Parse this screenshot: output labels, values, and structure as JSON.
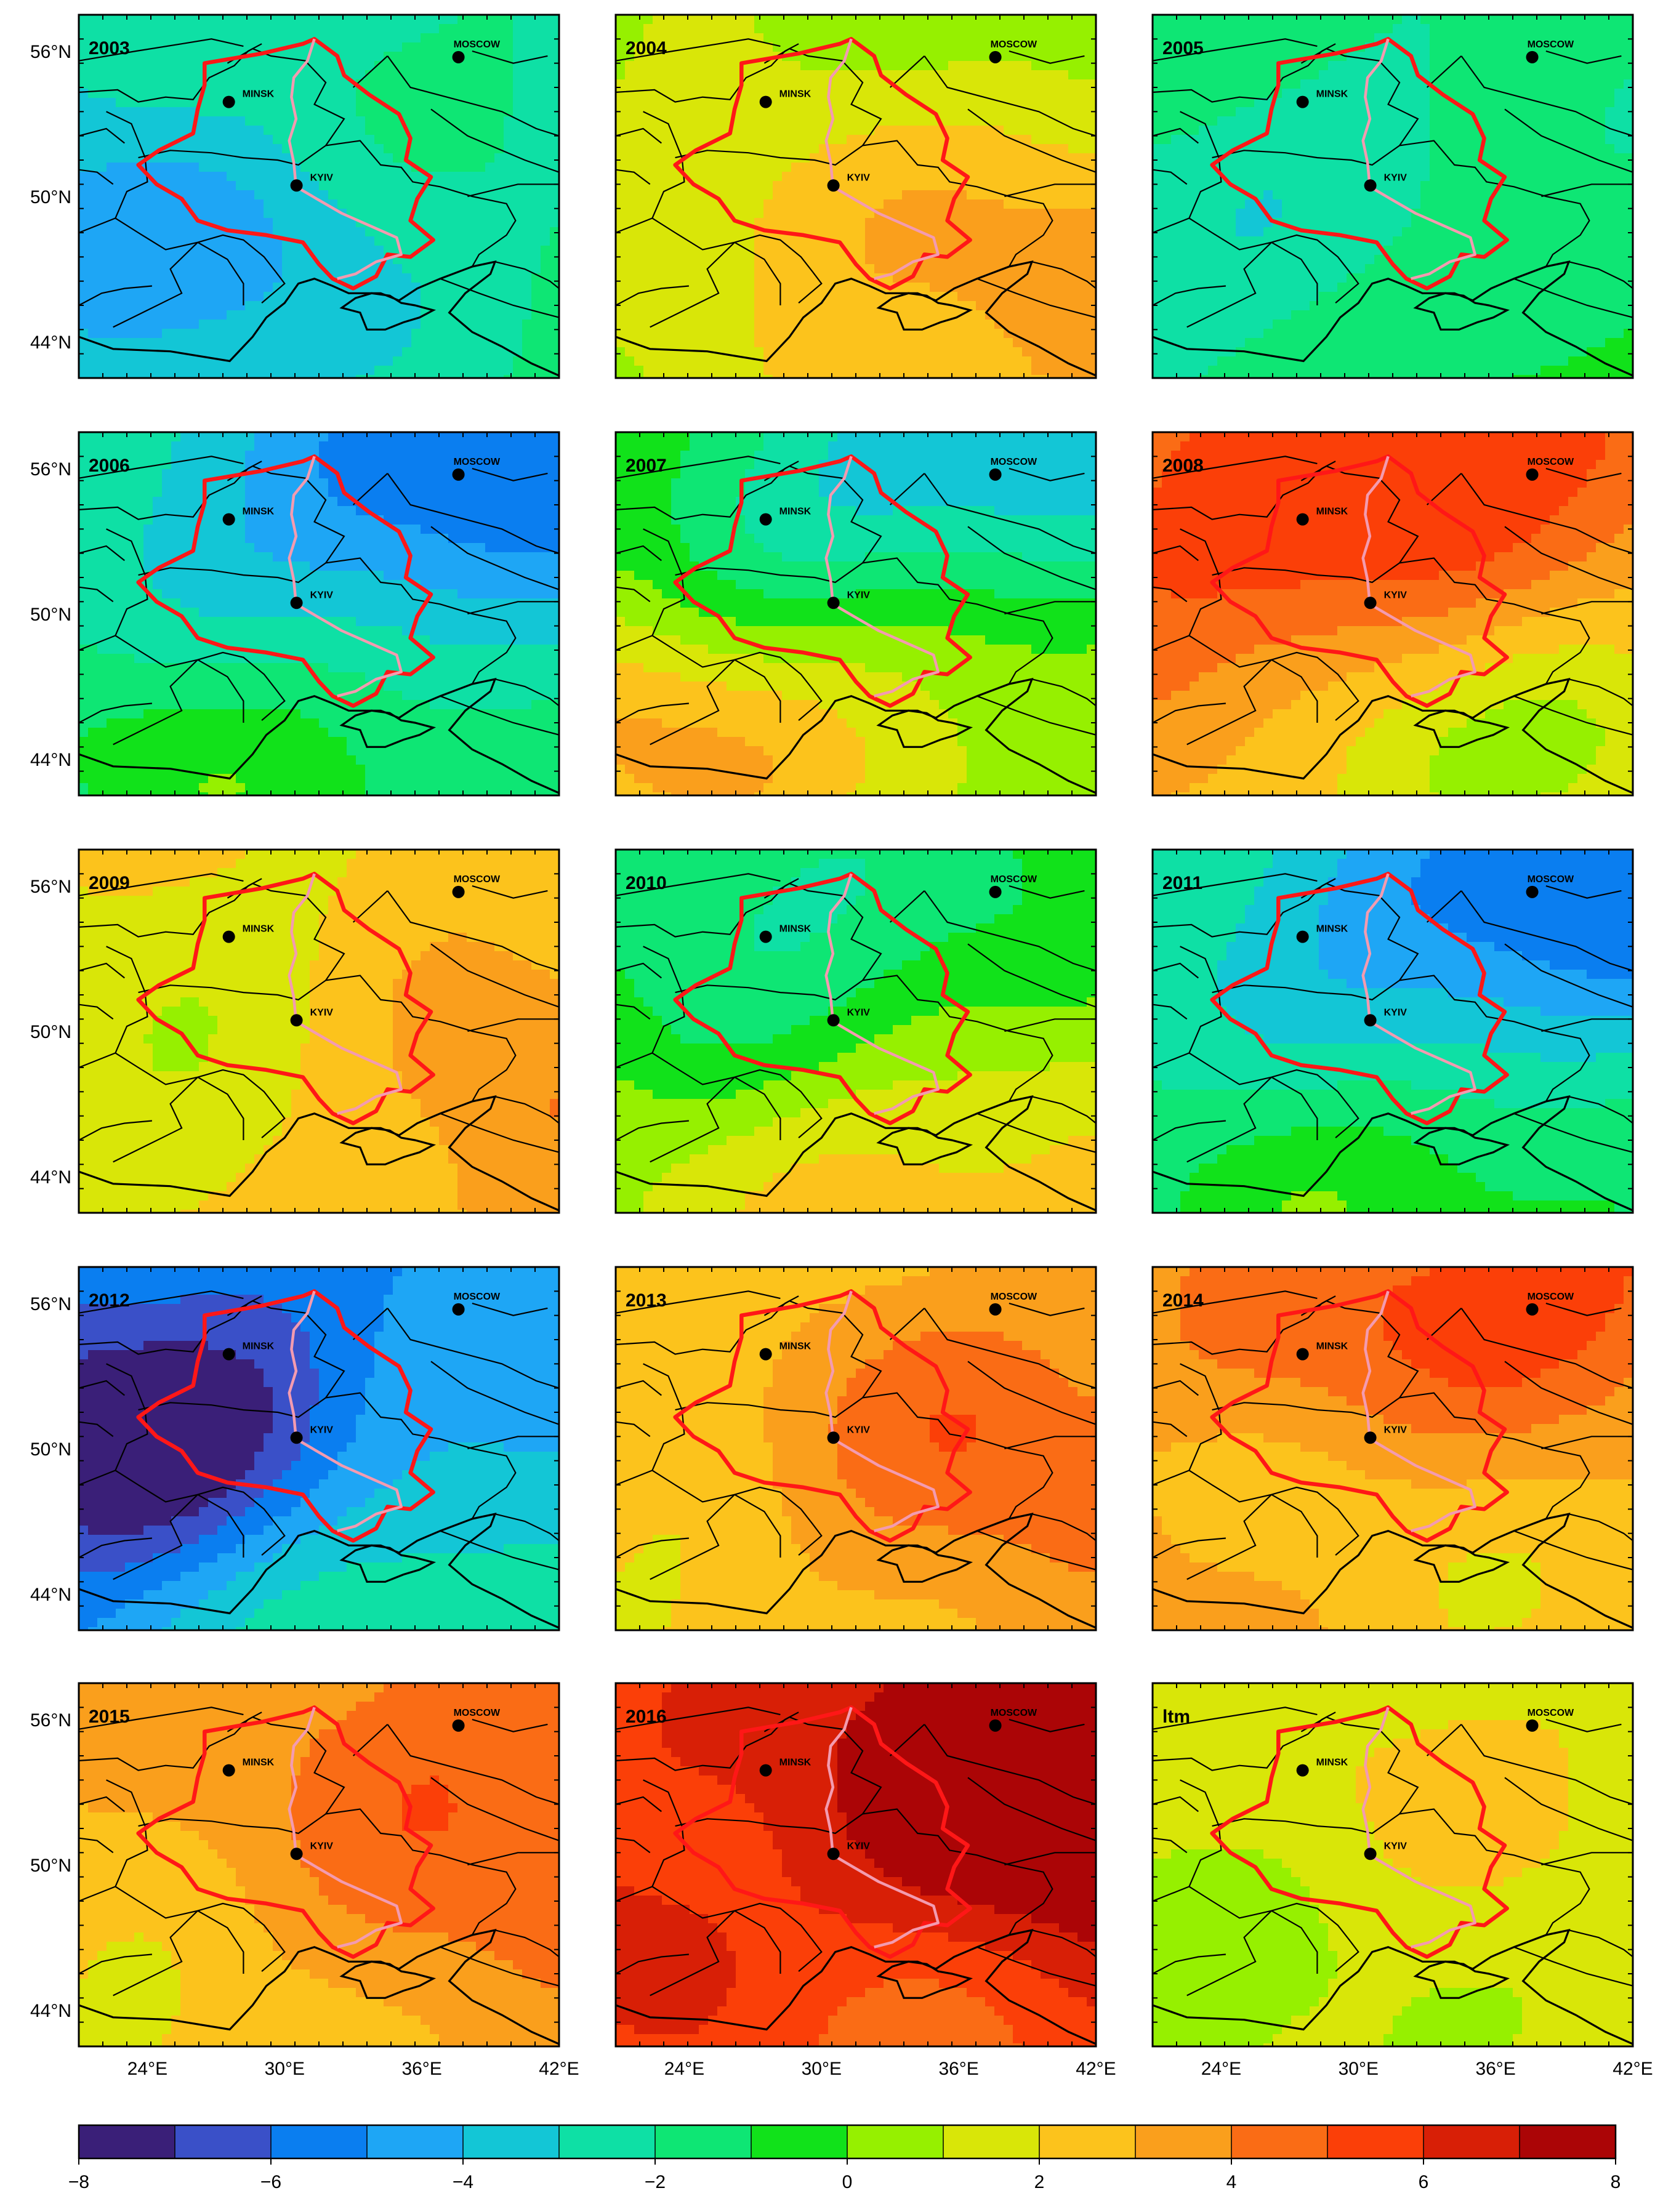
{
  "panels": [
    {
      "label": "2003",
      "field": {
        "base": -2.6,
        "blobs": [
          [
            0.05,
            0.62,
            -1.6,
            0.35
          ],
          [
            0.45,
            0.7,
            -0.8,
            0.25
          ],
          [
            0.85,
            0.2,
            0.6,
            0.35
          ],
          [
            0.95,
            0.95,
            0.8,
            0.3
          ],
          [
            0.4,
            0.15,
            0.5,
            0.25
          ]
        ]
      }
    },
    {
      "label": "2004",
      "field": {
        "base": 1.2,
        "blobs": [
          [
            0.3,
            0.55,
            1.2,
            0.3
          ],
          [
            0.95,
            0.75,
            2.4,
            0.35
          ],
          [
            0.75,
            0.1,
            -0.9,
            0.3
          ],
          [
            0.05,
            0.15,
            -0.8,
            0.25
          ],
          [
            0.1,
            0.9,
            -0.6,
            0.25
          ]
        ]
      }
    },
    {
      "label": "2005",
      "field": {
        "base": -1.3,
        "blobs": [
          [
            0.1,
            0.75,
            -1.2,
            0.35
          ],
          [
            0.45,
            0.4,
            -0.8,
            0.25
          ],
          [
            0.65,
            0.95,
            0.9,
            0.3
          ],
          [
            0.95,
            0.4,
            -0.5,
            0.3
          ]
        ]
      }
    },
    {
      "label": "2006",
      "field": {
        "base": -2.8,
        "blobs": [
          [
            0.9,
            0.1,
            -2.4,
            0.3
          ],
          [
            0.55,
            0.25,
            -1.2,
            0.3
          ],
          [
            0.3,
            0.95,
            1.8,
            0.3
          ],
          [
            0.85,
            0.95,
            1.4,
            0.3
          ],
          [
            0.05,
            0.85,
            0.8,
            0.25
          ]
        ]
      }
    },
    {
      "label": "2007",
      "field": {
        "base": -0.4,
        "blobs": [
          [
            0.85,
            0.05,
            -3.2,
            0.3
          ],
          [
            0.35,
            0.25,
            -1.8,
            0.25
          ],
          [
            0.05,
            0.85,
            3.4,
            0.3
          ],
          [
            0.6,
            0.9,
            1.4,
            0.3
          ],
          [
            0.95,
            0.7,
            0.6,
            0.3
          ]
        ]
      }
    },
    {
      "label": "2008",
      "field": {
        "base": 3.3,
        "blobs": [
          [
            0.35,
            0.2,
            2.2,
            0.3
          ],
          [
            0.85,
            0.05,
            1.6,
            0.3
          ],
          [
            0.45,
            0.95,
            -1.6,
            0.3
          ],
          [
            0.95,
            0.8,
            -1.9,
            0.3
          ],
          [
            0.05,
            0.6,
            1.2,
            0.25
          ]
        ]
      }
    },
    {
      "label": "2009",
      "field": {
        "base": 2.6,
        "blobs": [
          [
            0.15,
            0.3,
            -1.2,
            0.3
          ],
          [
            0.95,
            0.7,
            1.4,
            0.3
          ],
          [
            0.5,
            0.55,
            -0.4,
            0.25
          ],
          [
            0.2,
            0.95,
            -0.9,
            0.25
          ]
        ]
      }
    },
    {
      "label": "2010",
      "field": {
        "base": 0.6,
        "blobs": [
          [
            0.1,
            0.05,
            -1.8,
            0.3
          ],
          [
            0.7,
            0.15,
            -1.8,
            0.35
          ],
          [
            0.3,
            0.45,
            -0.9,
            0.25
          ],
          [
            0.5,
            0.95,
            1.5,
            0.3
          ],
          [
            0.95,
            0.85,
            1.3,
            0.3
          ]
        ]
      }
    },
    {
      "label": "2011",
      "field": {
        "base": -2.4,
        "blobs": [
          [
            0.95,
            0.1,
            -3.0,
            0.3
          ],
          [
            0.5,
            0.3,
            -1.6,
            0.3
          ],
          [
            0.3,
            0.95,
            1.9,
            0.3
          ],
          [
            0.85,
            0.95,
            1.4,
            0.3
          ]
        ]
      }
    },
    {
      "label": "2012",
      "field": {
        "base": -4.9,
        "blobs": [
          [
            0.2,
            0.45,
            -2.8,
            0.3
          ],
          [
            0.05,
            0.55,
            -1.2,
            0.25
          ],
          [
            0.5,
            0.95,
            2.3,
            0.3
          ],
          [
            0.95,
            0.95,
            1.6,
            0.3
          ],
          [
            0.9,
            0.15,
            0.6,
            0.3
          ]
        ]
      }
    },
    {
      "label": "2013",
      "field": {
        "base": 2.8,
        "blobs": [
          [
            0.55,
            0.45,
            1.2,
            0.3
          ],
          [
            0.95,
            0.6,
            1.4,
            0.3
          ],
          [
            0.05,
            0.15,
            -1.1,
            0.25
          ],
          [
            0.15,
            0.95,
            -1.0,
            0.3
          ]
        ]
      }
    },
    {
      "label": "2014",
      "field": {
        "base": 2.6,
        "blobs": [
          [
            0.85,
            0.05,
            2.6,
            0.3
          ],
          [
            0.35,
            0.15,
            1.6,
            0.3
          ],
          [
            0.5,
            0.75,
            -0.6,
            0.3
          ],
          [
            0.05,
            0.95,
            0.8,
            0.25
          ]
        ]
      }
    },
    {
      "label": "2015",
      "field": {
        "base": 2.8,
        "blobs": [
          [
            0.8,
            0.1,
            1.6,
            0.35
          ],
          [
            0.9,
            0.7,
            1.2,
            0.3
          ],
          [
            0.2,
            0.95,
            -1.2,
            0.3
          ],
          [
            0.4,
            0.55,
            0.5,
            0.25
          ]
        ]
      }
    },
    {
      "label": "2016",
      "field": {
        "base": 5.3,
        "blobs": [
          [
            0.95,
            0.4,
            2.8,
            0.35
          ],
          [
            0.7,
            0.05,
            1.4,
            0.3
          ],
          [
            0.15,
            0.7,
            1.0,
            0.2
          ],
          [
            0.55,
            0.95,
            -1.2,
            0.3
          ],
          [
            0.05,
            0.95,
            0.6,
            0.25
          ]
        ]
      }
    },
    {
      "label": "ltm",
      "field": {
        "base": 1.0,
        "blobs": [
          [
            0.45,
            0.3,
            0.8,
            0.3
          ],
          [
            0.8,
            0.2,
            0.6,
            0.3
          ],
          [
            0.2,
            0.85,
            -0.5,
            0.3
          ],
          [
            0.95,
            0.85,
            0.5,
            0.3
          ]
        ]
      }
    }
  ],
  "cities": {
    "moscow": "MOSCOW",
    "minsk": "MINSK",
    "kyiv": "KYIV"
  },
  "lat_ticks": [
    "56°N",
    "50°N",
    "44°N"
  ],
  "lon_ticks": [
    "24°E",
    "30°E",
    "36°E",
    "42°E"
  ],
  "colorbar": {
    "levels": [
      -8,
      -7,
      -6,
      -5,
      -4,
      -3,
      -2,
      -1,
      0,
      1,
      2,
      3,
      4,
      5,
      6,
      7,
      8
    ],
    "tick_labels": [
      "−8",
      "−6",
      "−4",
      "−2",
      "0",
      "2",
      "4",
      "6",
      "8"
    ],
    "colors": [
      "#3a1f78",
      "#3a50c8",
      "#0a7ef0",
      "#1ea6f5",
      "#13c6d6",
      "#0ee0a5",
      "#0ee674",
      "#11e21a",
      "#96f000",
      "#d9e608",
      "#fcc31c",
      "#fa9f1c",
      "#fa6c15",
      "#fb3f08",
      "#d81f06",
      "#ab0506"
    ]
  },
  "style": {
    "basin_color": "#ff1717",
    "river_color": "#f39bb0",
    "coast_color": "#000000"
  }
}
